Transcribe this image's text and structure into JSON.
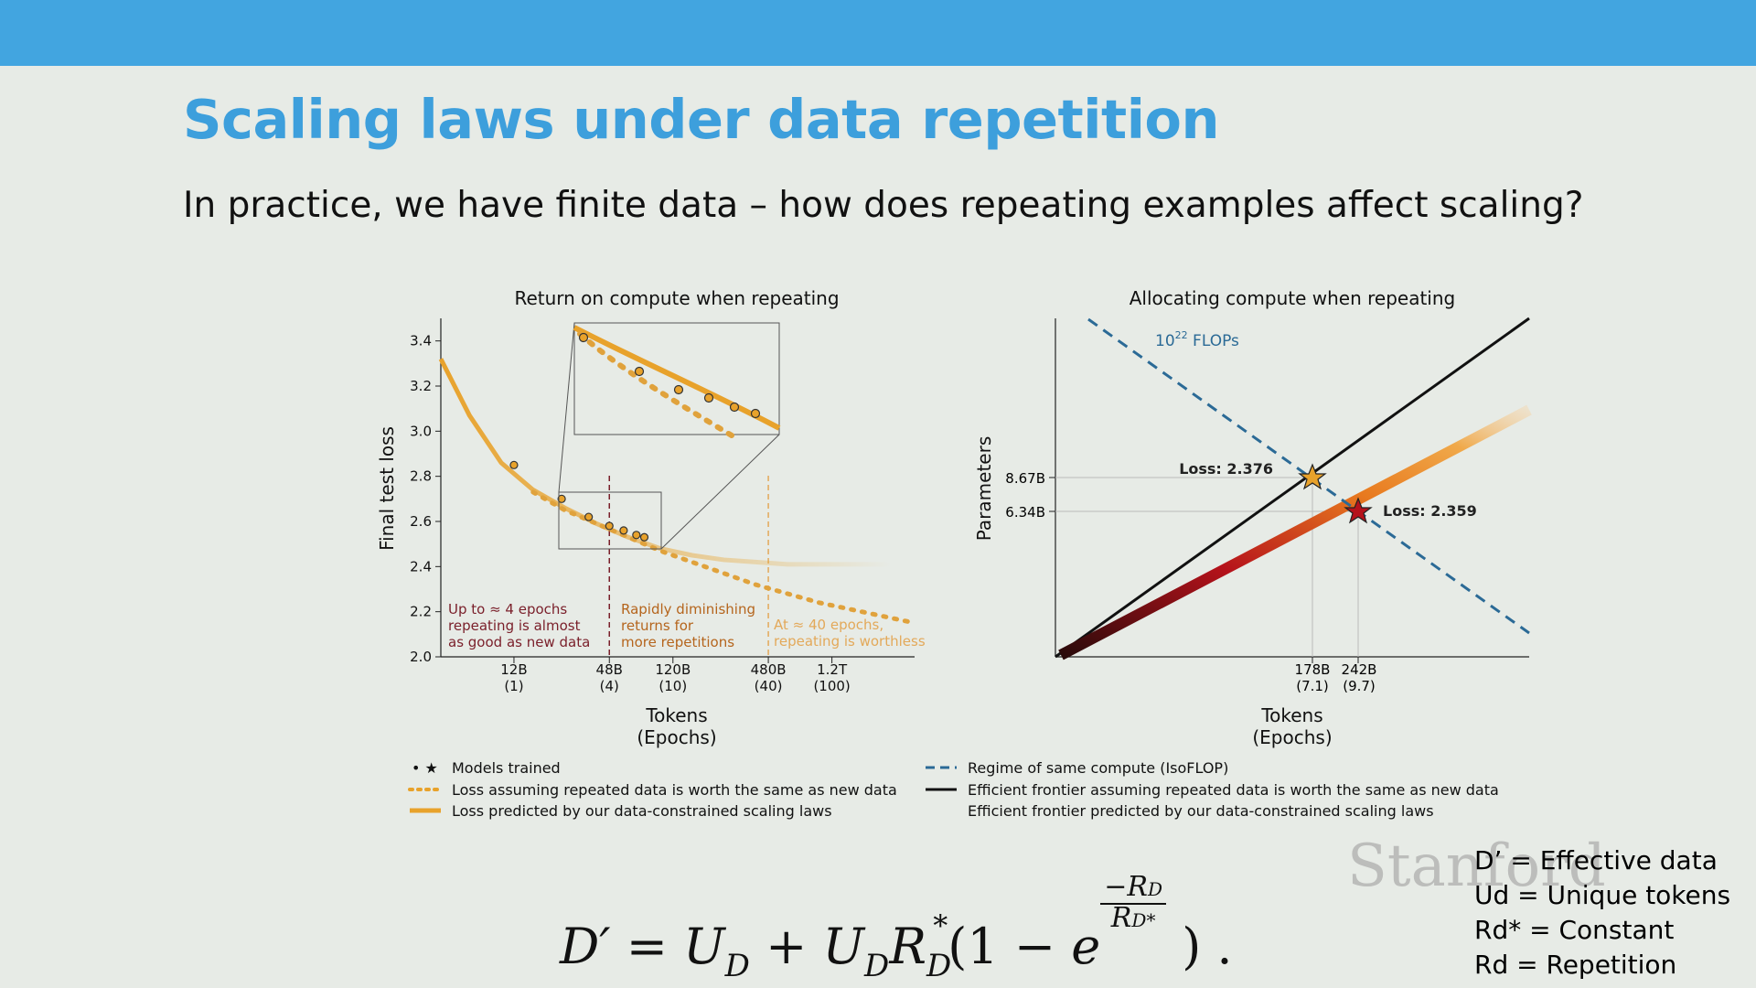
{
  "slide": {
    "title": "Scaling laws under data repetition",
    "subtitle": "In practice, we have finite data – how does repeating examples affect scaling?",
    "watermark": "Stanford",
    "definitions": [
      "D’ = Effective data",
      "Ud = Unique tokens",
      "Rd* = Constant",
      "Rd = Repetition"
    ],
    "formula": {
      "lhs": "D′",
      "eq": "=",
      "U": "U",
      "Dsub": "D",
      "plus": "+",
      "R": "R",
      "star": "*",
      "one_minus": "(1 −",
      "e": "e",
      "num": "−R",
      "close": ") ."
    },
    "colors": {
      "topbar": "#42a5e0",
      "title": "#3d9fdc",
      "orange": "#e8a22b",
      "dashed_blue": "#2b6a96",
      "dark_red": "#7a1f2a"
    }
  },
  "chart_data": [
    {
      "type": "line",
      "title": "Return on compute when repeating",
      "ylabel": "Final test loss",
      "xlabel": "Tokens\n(Epochs)",
      "xlabel_lines": [
        "Tokens",
        "(Epochs)"
      ],
      "ylim": [
        2.0,
        3.5
      ],
      "yticks": [
        "2.0",
        "2.2",
        "2.4",
        "2.6",
        "2.8",
        "3.0",
        "3.2",
        "3.4"
      ],
      "xtick_labels": [
        {
          "tokens": "12B",
          "epochs": "(1)",
          "log_tokens": 10.08
        },
        {
          "tokens": "48B",
          "epochs": "(4)",
          "log_tokens": 10.68
        },
        {
          "tokens": "120B",
          "epochs": "(10)",
          "log_tokens": 11.08
        },
        {
          "tokens": "480B",
          "epochs": "(40)",
          "log_tokens": 11.68
        },
        {
          "tokens": "1.2T",
          "epochs": "(100)",
          "log_tokens": 12.08
        }
      ],
      "xlim_log_tokens": [
        9.62,
        12.6
      ],
      "series": [
        {
          "name": "Loss predicted by our data-constrained scaling laws",
          "style": "solid-orange",
          "x": [
            9.62,
            9.8,
            10.0,
            10.2,
            10.4,
            10.6,
            10.8,
            11.0,
            11.2,
            11.4,
            11.6,
            11.8,
            12.0,
            12.2,
            12.45
          ],
          "y": [
            3.32,
            3.07,
            2.86,
            2.74,
            2.66,
            2.59,
            2.53,
            2.48,
            2.45,
            2.43,
            2.42,
            2.41,
            2.41,
            2.41,
            2.41
          ]
        },
        {
          "name": "Loss assuming repeated data is worth the same as new data",
          "style": "dotted-orange",
          "x": [
            10.2,
            10.4,
            10.6,
            10.8,
            11.0,
            11.2,
            11.4,
            11.6,
            11.8,
            12.0,
            12.2,
            12.4,
            12.6
          ],
          "y": [
            2.73,
            2.65,
            2.59,
            2.53,
            2.47,
            2.42,
            2.37,
            2.32,
            2.28,
            2.24,
            2.21,
            2.18,
            2.15
          ]
        }
      ],
      "models_trained": {
        "x": [
          10.08,
          10.38,
          10.55,
          10.68,
          10.77,
          10.85,
          10.9
        ],
        "y": [
          2.85,
          2.7,
          2.62,
          2.58,
          2.56,
          2.54,
          2.53
        ]
      },
      "annotations": [
        {
          "lines": [
            "Up to ≈ 4 epochs",
            "repeating is almost",
            "as good as new data"
          ],
          "color": "#7a1f2a"
        },
        {
          "lines": [
            "Rapidly diminishing",
            "returns for",
            "more repetitions"
          ],
          "color": "#b5651d"
        },
        {
          "lines": [
            "At ≈ 40 epochs,",
            "repeating is worthless"
          ],
          "color": "#e3a95a"
        }
      ],
      "vlines_at_log_tokens": [
        10.68,
        11.68
      ]
    },
    {
      "type": "line",
      "title": "Allocating compute when repeating",
      "ylabel": "Parameters",
      "xlabel_lines": [
        "Tokens",
        "(Epochs)"
      ],
      "yticks": [
        "8.67B",
        "6.34B"
      ],
      "xticks": [
        {
          "tokens": "178B",
          "epochs": "(7.1)"
        },
        {
          "tokens": "242B",
          "epochs": "(9.7)"
        }
      ],
      "isoflop_label": {
        "base": "10",
        "exp": "22",
        "rest": " FLOPs"
      },
      "points": [
        {
          "label": "Loss: 2.376",
          "tokens": "178B",
          "params": "8.67B",
          "marker": "star",
          "color": "#e8a22b"
        },
        {
          "label": "Loss: 2.359",
          "tokens": "242B",
          "params": "6.34B",
          "marker": "star",
          "color": "#b5121b"
        }
      ]
    }
  ],
  "legend": {
    "left": [
      {
        "symbol": "• ★",
        "label": "Models trained"
      },
      {
        "symbol": "dotted-orange",
        "label": "Loss assuming repeated data is worth the same as new data"
      },
      {
        "symbol": "solid-orange",
        "label": "Loss predicted by our data-constrained scaling laws"
      }
    ],
    "right": [
      {
        "symbol": "dashed-blue",
        "label": "Regime of same compute (IsoFLOP)"
      },
      {
        "symbol": "solid-black",
        "label": "Efficient frontier assuming repeated data is worth the same as new data"
      },
      {
        "symbol": "gradient",
        "label": "Efficient frontier predicted by our data-constrained scaling laws"
      }
    ]
  }
}
